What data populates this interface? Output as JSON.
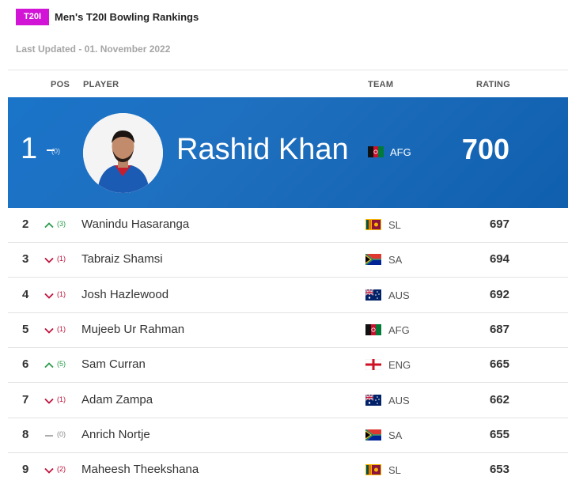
{
  "header": {
    "badge": "T20I",
    "title": "Men's T20I Bowling Rankings"
  },
  "updated": "Last Updated - 01. November 2022",
  "columns": {
    "pos": "POS",
    "player": "PLAYER",
    "team": "TEAM",
    "rating": "RATING"
  },
  "leader": {
    "pos": "1",
    "change": "(0)",
    "name": "Rashid Khan",
    "team": "AFG",
    "rating": "700",
    "flag": "afg-flag"
  },
  "rows": [
    {
      "pos": "2",
      "dir": "up",
      "change": "(3)",
      "name": "Wanindu Hasaranga",
      "team": "SL",
      "rating": "697",
      "flag": "sl-flag"
    },
    {
      "pos": "3",
      "dir": "down",
      "change": "(1)",
      "name": "Tabraiz Shamsi",
      "team": "SA",
      "rating": "694",
      "flag": "sa-flag"
    },
    {
      "pos": "4",
      "dir": "down",
      "change": "(1)",
      "name": "Josh Hazlewood",
      "team": "AUS",
      "rating": "692",
      "flag": "aus-flag"
    },
    {
      "pos": "5",
      "dir": "down",
      "change": "(1)",
      "name": "Mujeeb Ur Rahman",
      "team": "AFG",
      "rating": "687",
      "flag": "afg-flag"
    },
    {
      "pos": "6",
      "dir": "up",
      "change": "(5)",
      "name": "Sam Curran",
      "team": "ENG",
      "rating": "665",
      "flag": "eng-flag"
    },
    {
      "pos": "7",
      "dir": "down",
      "change": "(1)",
      "name": "Adam Zampa",
      "team": "AUS",
      "rating": "662",
      "flag": "aus-flag"
    },
    {
      "pos": "8",
      "dir": "same",
      "change": "(0)",
      "name": "Anrich Nortje",
      "team": "SA",
      "rating": "655",
      "flag": "sa-flag"
    },
    {
      "pos": "9",
      "dir": "down",
      "change": "(2)",
      "name": "Maheesh Theekshana",
      "team": "SL",
      "rating": "653",
      "flag": "sl-flag"
    }
  ]
}
